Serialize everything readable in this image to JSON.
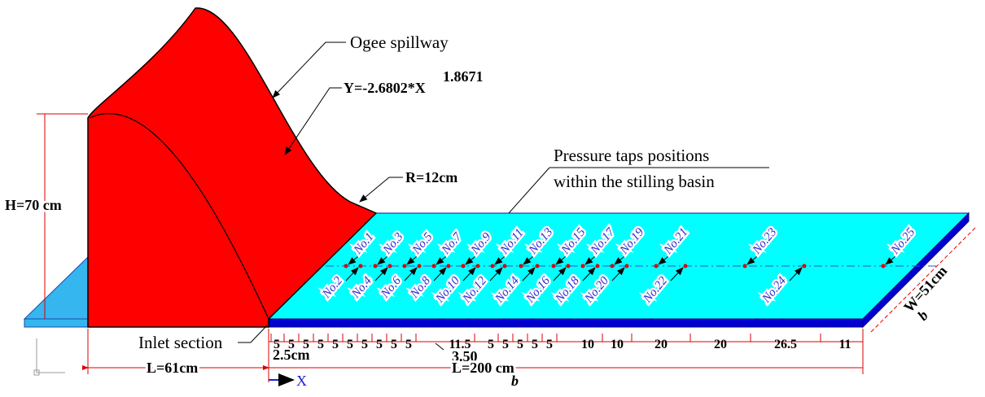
{
  "spillway_label": "Ogee spillway",
  "equation": {
    "base": "Y=-2.6802*X",
    "exponent": "1.8671"
  },
  "radius": "R=12cm",
  "taps_title": [
    "Pressure taps positions",
    "within the stilling basin"
  ],
  "height": "H=70 cm",
  "inlet": "Inlet section",
  "upstream_length": "L=61cm",
  "basin_length": {
    "text": "L=200 cm",
    "subscript": "b"
  },
  "basin_width": {
    "text": "W=51cm",
    "subscript": "b"
  },
  "offsets": [
    "2.5cm",
    "3.50"
  ],
  "axis": "X",
  "taps": [
    "No.1",
    "No.2",
    "No.3",
    "No.4",
    "No.5",
    "No.6",
    "No.7",
    "No.8",
    "No.9",
    "No.10",
    "No.11",
    "No.12",
    "No.13",
    "No.14",
    "No.15",
    "No.16",
    "No.17",
    "No.18",
    "No.19",
    "No.20",
    "No.21",
    "No.22",
    "No.23",
    "No.24",
    "No.25"
  ],
  "spacings": [
    "5",
    "5",
    "5",
    "5",
    "5",
    "5",
    "5",
    "5",
    "5",
    "5",
    "11.5",
    "5",
    "5",
    "5",
    "5",
    "5",
    "10",
    "10",
    "20",
    "20",
    "26.5",
    "11"
  ]
}
